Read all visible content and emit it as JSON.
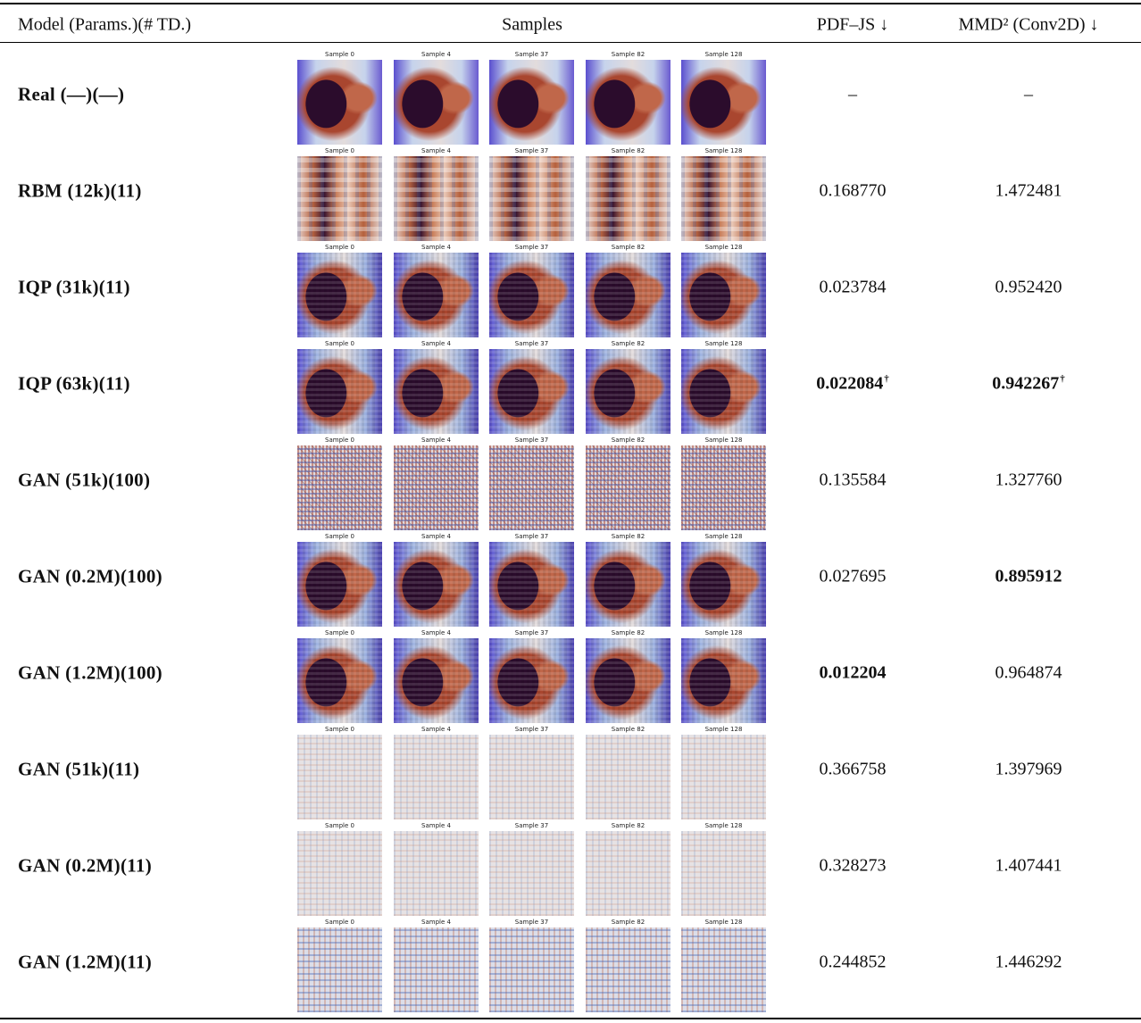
{
  "header": [
    "Model (Params.)(# TD.)",
    "Samples",
    "PDF–JS ↓",
    "MMD² (Conv2D) ↓"
  ],
  "sample_labels": [
    "Sample 0",
    "Sample 4",
    "Sample 37",
    "Sample 82",
    "Sample 128"
  ],
  "rows": [
    {
      "model": "Real (—)(—)",
      "pdf_js": "–",
      "mmd": "–"
    },
    {
      "model": "RBM (12k)(11)",
      "pdf_js": "0.168770",
      "mmd": "1.472481"
    },
    {
      "model": "IQP (31k)(11)",
      "pdf_js": "0.023784",
      "mmd": "0.952420"
    },
    {
      "model": "IQP (63k)(11)",
      "pdf_js": "0.022084",
      "pdf_js_mark": "†",
      "pdf_js_bold": true,
      "mmd": "0.942267",
      "mmd_mark": "†",
      "mmd_bold": true
    },
    {
      "model": "GAN (51k)(100)",
      "pdf_js": "0.135584",
      "mmd": "1.327760"
    },
    {
      "model": "GAN (0.2M)(100)",
      "pdf_js": "0.027695",
      "mmd": "0.895912",
      "mmd_bold": true
    },
    {
      "model": "GAN (1.2M)(100)",
      "pdf_js": "0.012204",
      "pdf_js_bold": true,
      "mmd": "0.964874"
    },
    {
      "model": "GAN (51k)(11)",
      "pdf_js": "0.366758",
      "mmd": "1.397969"
    },
    {
      "model": "GAN (0.2M)(11)",
      "pdf_js": "0.328273",
      "mmd": "1.407441"
    },
    {
      "model": "GAN (1.2M)(11)",
      "pdf_js": "0.244852",
      "mmd": "1.446292"
    }
  ]
}
